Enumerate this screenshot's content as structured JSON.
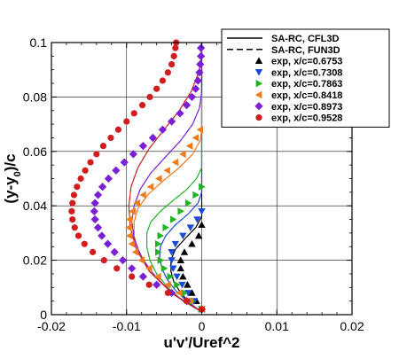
{
  "chart_data": {
    "type": "line",
    "xlabel": "u'v'/Uref^2",
    "ylabel_main": "(y-y",
    "ylabel_sub": "0",
    "ylabel_tail": ")/c",
    "xlim": [
      -0.02,
      0.02
    ],
    "ylim": [
      0,
      0.1
    ],
    "x_ticks": [
      {
        "value": -0.02,
        "label": "-0.02"
      },
      {
        "value": -0.01,
        "label": "-0.01"
      },
      {
        "value": 0,
        "label": "0"
      },
      {
        "value": 0.01,
        "label": "0.01"
      },
      {
        "value": 0.02,
        "label": "0.02"
      }
    ],
    "y_ticks": [
      {
        "value": 0,
        "label": "0"
      },
      {
        "value": 0.02,
        "label": "0.02"
      },
      {
        "value": 0.04,
        "label": "0.04"
      },
      {
        "value": 0.06,
        "label": "0.06"
      },
      {
        "value": 0.08,
        "label": "0.08"
      },
      {
        "value": 0.1,
        "label": "0.1"
      }
    ],
    "grid": true,
    "legend_position": "top-right",
    "cfd_legend": [
      {
        "label": "SA-RC, CFL3D",
        "dash": "solid"
      },
      {
        "label": "SA-RC, FUN3D",
        "dash": "dashed"
      }
    ],
    "experiments": [
      {
        "label": "exp, x/c=0.6753",
        "color": "#000000",
        "marker": "triangle-up",
        "points": [
          [
            0,
            0.002
          ],
          [
            -0.0007,
            0.005
          ],
          [
            -0.0013,
            0.008
          ],
          [
            -0.0019,
            0.011
          ],
          [
            -0.0025,
            0.014
          ],
          [
            -0.0028,
            0.017
          ],
          [
            -0.0028,
            0.02
          ],
          [
            -0.0023,
            0.023
          ],
          [
            -0.0013,
            0.026
          ],
          [
            -0.0004,
            0.029
          ],
          [
            0,
            0.033
          ]
        ]
      },
      {
        "label": "exp, x/c=0.7308",
        "color": "#1a4bd6",
        "marker": "triangle-down",
        "points": [
          [
            0,
            0.002
          ],
          [
            -0.001,
            0.005
          ],
          [
            -0.0018,
            0.008
          ],
          [
            -0.0026,
            0.011
          ],
          [
            -0.0033,
            0.014
          ],
          [
            -0.0038,
            0.017
          ],
          [
            -0.004,
            0.02
          ],
          [
            -0.004,
            0.023
          ],
          [
            -0.0035,
            0.026
          ],
          [
            -0.0025,
            0.029
          ],
          [
            -0.0015,
            0.032
          ],
          [
            -0.0006,
            0.035
          ],
          [
            0,
            0.038
          ]
        ]
      },
      {
        "label": "exp, x/c=0.7863",
        "color": "#22b322",
        "marker": "triangle-right",
        "points": [
          [
            0,
            0.002
          ],
          [
            -0.0013,
            0.005
          ],
          [
            -0.0023,
            0.008
          ],
          [
            -0.0033,
            0.011
          ],
          [
            -0.0042,
            0.014
          ],
          [
            -0.005,
            0.017
          ],
          [
            -0.0055,
            0.02
          ],
          [
            -0.0058,
            0.023
          ],
          [
            -0.0058,
            0.026
          ],
          [
            -0.0055,
            0.029
          ],
          [
            -0.0048,
            0.032
          ],
          [
            -0.0038,
            0.035
          ],
          [
            -0.0028,
            0.038
          ],
          [
            -0.0018,
            0.041
          ],
          [
            -0.0008,
            0.044
          ],
          [
            0,
            0.047
          ]
        ]
      },
      {
        "label": "exp, x/c=0.8418",
        "color": "#f07a1e",
        "marker": "triangle-left",
        "points": [
          [
            0,
            0.002
          ],
          [
            -0.0015,
            0.005
          ],
          [
            -0.003,
            0.008
          ],
          [
            -0.0045,
            0.011
          ],
          [
            -0.0058,
            0.014
          ],
          [
            -0.007,
            0.017
          ],
          [
            -0.008,
            0.02
          ],
          [
            -0.0088,
            0.023
          ],
          [
            -0.0093,
            0.026
          ],
          [
            -0.0096,
            0.029
          ],
          [
            -0.0097,
            0.032
          ],
          [
            -0.0096,
            0.035
          ],
          [
            -0.0092,
            0.038
          ],
          [
            -0.0086,
            0.041
          ],
          [
            -0.0078,
            0.044
          ],
          [
            -0.0068,
            0.047
          ],
          [
            -0.0057,
            0.05
          ],
          [
            -0.0046,
            0.053
          ],
          [
            -0.0035,
            0.056
          ],
          [
            -0.0025,
            0.059
          ],
          [
            -0.0016,
            0.062
          ],
          [
            -0.0008,
            0.065
          ],
          [
            -0.0002,
            0.068
          ]
        ]
      },
      {
        "label": "exp, x/c=0.8973",
        "color": "#7a1fd6",
        "marker": "diamond",
        "points": [
          [
            0,
            0.002
          ],
          [
            -0.002,
            0.005
          ],
          [
            -0.004,
            0.008
          ],
          [
            -0.006,
            0.011
          ],
          [
            -0.0078,
            0.014
          ],
          [
            -0.0093,
            0.017
          ],
          [
            -0.0105,
            0.02
          ],
          [
            -0.0116,
            0.023
          ],
          [
            -0.0125,
            0.026
          ],
          [
            -0.0133,
            0.029
          ],
          [
            -0.0138,
            0.032
          ],
          [
            -0.0142,
            0.035
          ],
          [
            -0.0143,
            0.038
          ],
          [
            -0.0142,
            0.041
          ],
          [
            -0.0138,
            0.044
          ],
          [
            -0.0132,
            0.047
          ],
          [
            -0.0124,
            0.05
          ],
          [
            -0.0114,
            0.053
          ],
          [
            -0.0103,
            0.056
          ],
          [
            -0.0091,
            0.059
          ],
          [
            -0.0078,
            0.062
          ],
          [
            -0.0065,
            0.065
          ],
          [
            -0.0052,
            0.068
          ],
          [
            -0.004,
            0.071
          ],
          [
            -0.0029,
            0.074
          ],
          [
            -0.002,
            0.077
          ],
          [
            -0.0013,
            0.08
          ],
          [
            -0.0008,
            0.083
          ],
          [
            -0.0005,
            0.086
          ],
          [
            -0.0003,
            0.089
          ],
          [
            -0.0002,
            0.092
          ],
          [
            -0.0001,
            0.095
          ],
          [
            -0.0001,
            0.098
          ]
        ]
      },
      {
        "label": "exp, x/c=0.9528",
        "color": "#d11d1d",
        "marker": "circle",
        "points": [
          [
            0,
            0.002
          ],
          [
            -0.002,
            0.005
          ],
          [
            -0.0045,
            0.008
          ],
          [
            -0.007,
            0.011
          ],
          [
            -0.0093,
            0.014
          ],
          [
            -0.0113,
            0.017
          ],
          [
            -0.013,
            0.02
          ],
          [
            -0.0145,
            0.023
          ],
          [
            -0.0156,
            0.026
          ],
          [
            -0.0164,
            0.029
          ],
          [
            -0.0169,
            0.032
          ],
          [
            -0.0172,
            0.035
          ],
          [
            -0.0173,
            0.038
          ],
          [
            -0.0172,
            0.041
          ],
          [
            -0.017,
            0.044
          ],
          [
            -0.0166,
            0.047
          ],
          [
            -0.0161,
            0.05
          ],
          [
            -0.0155,
            0.053
          ],
          [
            -0.0148,
            0.056
          ],
          [
            -0.014,
            0.059
          ],
          [
            -0.0131,
            0.062
          ],
          [
            -0.0121,
            0.065
          ],
          [
            -0.0111,
            0.068
          ],
          [
            -0.01,
            0.071
          ],
          [
            -0.009,
            0.074
          ],
          [
            -0.0079,
            0.077
          ],
          [
            -0.0069,
            0.08
          ],
          [
            -0.006,
            0.083
          ],
          [
            -0.0052,
            0.086
          ],
          [
            -0.0045,
            0.089
          ],
          [
            -0.004,
            0.092
          ],
          [
            -0.0037,
            0.095
          ],
          [
            -0.0035,
            0.098
          ],
          [
            -0.0034,
            0.1
          ]
        ]
      }
    ],
    "cfd_curves": [
      {
        "station": "x/c=0.6753",
        "color": "#000000",
        "points": [
          [
            0,
            0.001
          ],
          [
            -0.0015,
            0.004
          ],
          [
            -0.0028,
            0.008
          ],
          [
            -0.0037,
            0.012
          ],
          [
            -0.0041,
            0.016
          ],
          [
            -0.0041,
            0.02
          ],
          [
            -0.0035,
            0.024
          ],
          [
            -0.0022,
            0.028
          ],
          [
            -0.0008,
            0.032
          ],
          [
            0,
            0.036
          ],
          [
            0,
            0.1
          ]
        ]
      },
      {
        "station": "x/c=0.7308",
        "color": "#1a4bd6",
        "points": [
          [
            0,
            0.001
          ],
          [
            -0.002,
            0.005
          ],
          [
            -0.0035,
            0.009
          ],
          [
            -0.0046,
            0.013
          ],
          [
            -0.0053,
            0.017
          ],
          [
            -0.0056,
            0.021
          ],
          [
            -0.0055,
            0.025
          ],
          [
            -0.0048,
            0.029
          ],
          [
            -0.0035,
            0.033
          ],
          [
            -0.0018,
            0.037
          ],
          [
            -0.0005,
            0.041
          ],
          [
            0,
            0.045
          ],
          [
            0,
            0.1
          ]
        ]
      },
      {
        "station": "x/c=0.7863",
        "color": "#22b322",
        "points": [
          [
            0,
            0.001
          ],
          [
            -0.0025,
            0.005
          ],
          [
            -0.0045,
            0.01
          ],
          [
            -0.006,
            0.015
          ],
          [
            -0.0069,
            0.02
          ],
          [
            -0.0073,
            0.025
          ],
          [
            -0.0073,
            0.03
          ],
          [
            -0.0068,
            0.034
          ],
          [
            -0.0055,
            0.038
          ],
          [
            -0.0038,
            0.042
          ],
          [
            -0.002,
            0.046
          ],
          [
            -0.0007,
            0.05
          ],
          [
            0,
            0.054
          ],
          [
            0,
            0.1
          ]
        ]
      },
      {
        "station": "x/c=0.8418",
        "color": "#f07a1e",
        "points": [
          [
            0,
            0.001
          ],
          [
            -0.003,
            0.006
          ],
          [
            -0.0055,
            0.012
          ],
          [
            -0.0073,
            0.018
          ],
          [
            -0.0085,
            0.024
          ],
          [
            -0.009,
            0.029
          ],
          [
            -0.009,
            0.034
          ],
          [
            -0.0085,
            0.039
          ],
          [
            -0.0072,
            0.044
          ],
          [
            -0.0052,
            0.049
          ],
          [
            -0.003,
            0.054
          ],
          [
            -0.0012,
            0.059
          ],
          [
            -0.0002,
            0.064
          ],
          [
            0,
            0.068
          ],
          [
            0,
            0.1
          ]
        ]
      },
      {
        "station": "x/c=0.8973",
        "color": "#7a1fd6",
        "points": [
          [
            0,
            0.001
          ],
          [
            -0.0035,
            0.007
          ],
          [
            -0.0062,
            0.014
          ],
          [
            -0.008,
            0.021
          ],
          [
            -0.009,
            0.028
          ],
          [
            -0.0093,
            0.034
          ],
          [
            -0.009,
            0.04
          ],
          [
            -0.0082,
            0.046
          ],
          [
            -0.0068,
            0.052
          ],
          [
            -0.0048,
            0.058
          ],
          [
            -0.0028,
            0.064
          ],
          [
            -0.0012,
            0.07
          ],
          [
            -0.0003,
            0.076
          ],
          [
            0,
            0.082
          ],
          [
            0,
            0.1
          ]
        ]
      },
      {
        "station": "x/c=0.9528",
        "color": "#d11d1d",
        "points": [
          [
            0,
            0.001
          ],
          [
            -0.004,
            0.008
          ],
          [
            -0.007,
            0.016
          ],
          [
            -0.0087,
            0.024
          ],
          [
            -0.0095,
            0.032
          ],
          [
            -0.0097,
            0.04
          ],
          [
            -0.0094,
            0.047
          ],
          [
            -0.0085,
            0.054
          ],
          [
            -0.007,
            0.061
          ],
          [
            -0.005,
            0.068
          ],
          [
            -0.003,
            0.075
          ],
          [
            -0.0014,
            0.082
          ],
          [
            -0.0004,
            0.089
          ],
          [
            0,
            0.095
          ],
          [
            0,
            0.1
          ]
        ]
      }
    ]
  }
}
